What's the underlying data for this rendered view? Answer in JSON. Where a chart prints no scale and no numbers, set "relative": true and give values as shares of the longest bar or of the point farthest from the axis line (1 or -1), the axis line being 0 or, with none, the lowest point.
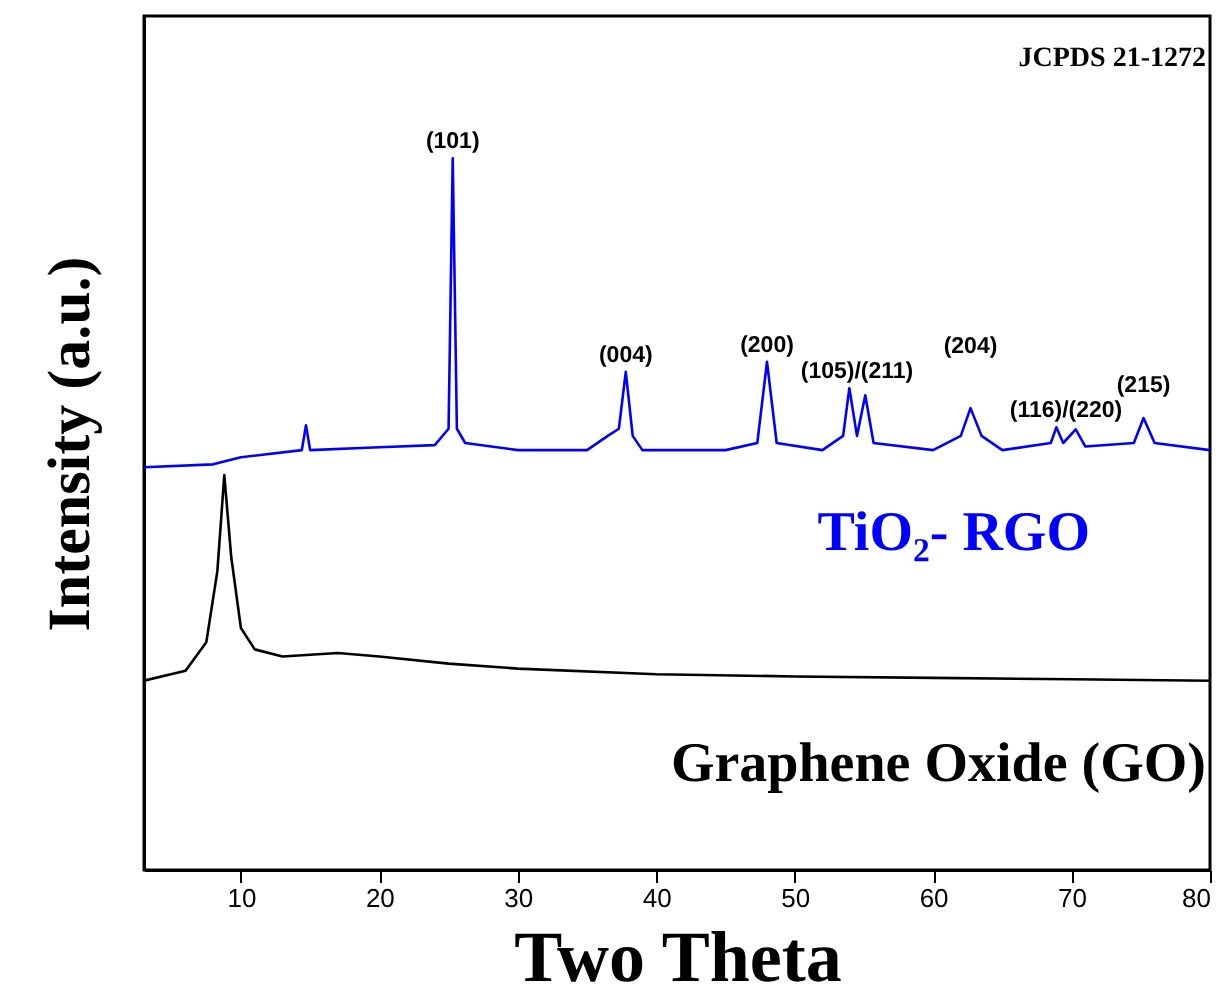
{
  "chart_data": {
    "type": "line",
    "relative": true,
    "xlabel": "Two Theta",
    "ylabel": "Intensity (a.u.)",
    "xlim": [
      3,
      80
    ],
    "xticks": [
      10,
      20,
      30,
      40,
      50,
      60,
      70,
      80
    ],
    "marker": "none",
    "annotations": [
      "JCPDS 21-1272",
      {
        "text": "(101)",
        "x": 25.3,
        "y": 1.0
      },
      {
        "text": "(004)",
        "x": 37.8,
        "y": 0.7
      },
      {
        "text": "(200)",
        "x": 48.0,
        "y": 0.714
      },
      {
        "text": "(105)/(211)",
        "x": 54.5,
        "y": 0.677
      },
      {
        "text": "(204)",
        "x": 62.7,
        "y": 0.649
      },
      {
        "text": "(116)/(220)",
        "x": 69.6,
        "y": 0.622
      },
      {
        "text": "(215)",
        "x": 75.2,
        "y": 0.635
      }
    ],
    "series": [
      {
        "name": "TiO₂- RGO",
        "color": "#0000ff",
        "x": [
          3,
          8,
          10,
          14.4,
          14.7,
          15,
          20,
          24,
          25.0,
          25.3,
          25.6,
          26.2,
          30,
          35,
          36.5,
          37.3,
          37.8,
          38.3,
          39,
          45,
          47.3,
          48.0,
          48.7,
          52,
          53.5,
          53.95,
          54.5,
          55.1,
          55.7,
          60,
          62,
          62.7,
          63.5,
          65,
          68.5,
          68.9,
          69.4,
          70.3,
          71,
          74.5,
          75.2,
          76,
          80
        ],
        "values": [
          0.566,
          0.57,
          0.58,
          0.59,
          0.625,
          0.59,
          0.594,
          0.597,
          0.62,
          1.0,
          0.62,
          0.6,
          0.59,
          0.59,
          0.61,
          0.62,
          0.7,
          0.61,
          0.59,
          0.59,
          0.6,
          0.714,
          0.6,
          0.59,
          0.61,
          0.677,
          0.61,
          0.667,
          0.6,
          0.59,
          0.61,
          0.649,
          0.61,
          0.59,
          0.6,
          0.622,
          0.6,
          0.619,
          0.595,
          0.6,
          0.635,
          0.6,
          0.59
        ]
      },
      {
        "name": "Graphene Oxide (GO)",
        "color": "#000000",
        "x": [
          3,
          6,
          7.5,
          8.3,
          8.8,
          9.3,
          10,
          11,
          13,
          17,
          20,
          25,
          30,
          40,
          50,
          60,
          70,
          80
        ],
        "values": [
          0.266,
          0.28,
          0.32,
          0.42,
          0.555,
          0.44,
          0.34,
          0.31,
          0.3,
          0.305,
          0.3,
          0.29,
          0.283,
          0.275,
          0.272,
          0.27,
          0.268,
          0.266
        ]
      }
    ]
  }
}
